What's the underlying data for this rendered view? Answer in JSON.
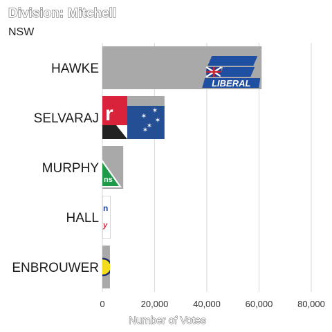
{
  "chart_data": {
    "type": "bar",
    "orientation": "horizontal",
    "title": "Division: Mitchell",
    "subtitle": "NSW",
    "categories": [
      "HAWKE",
      "SELVARAJ",
      "MURPHY",
      "HALL",
      "ENBROUWER"
    ],
    "values": [
      61000,
      23800,
      8000,
      3100,
      2900
    ],
    "xlabel": "Number of Votes",
    "ylabel": "",
    "xlim": [
      0,
      80000
    ],
    "x_ticks": [
      "0",
      "20,000",
      "40,000",
      "60,000",
      "80,000"
    ],
    "grid": true,
    "party_logos": [
      "liberal-logo",
      "labor-logo",
      "greens-logo",
      "one-nation-logo",
      "uap-logo"
    ]
  }
}
